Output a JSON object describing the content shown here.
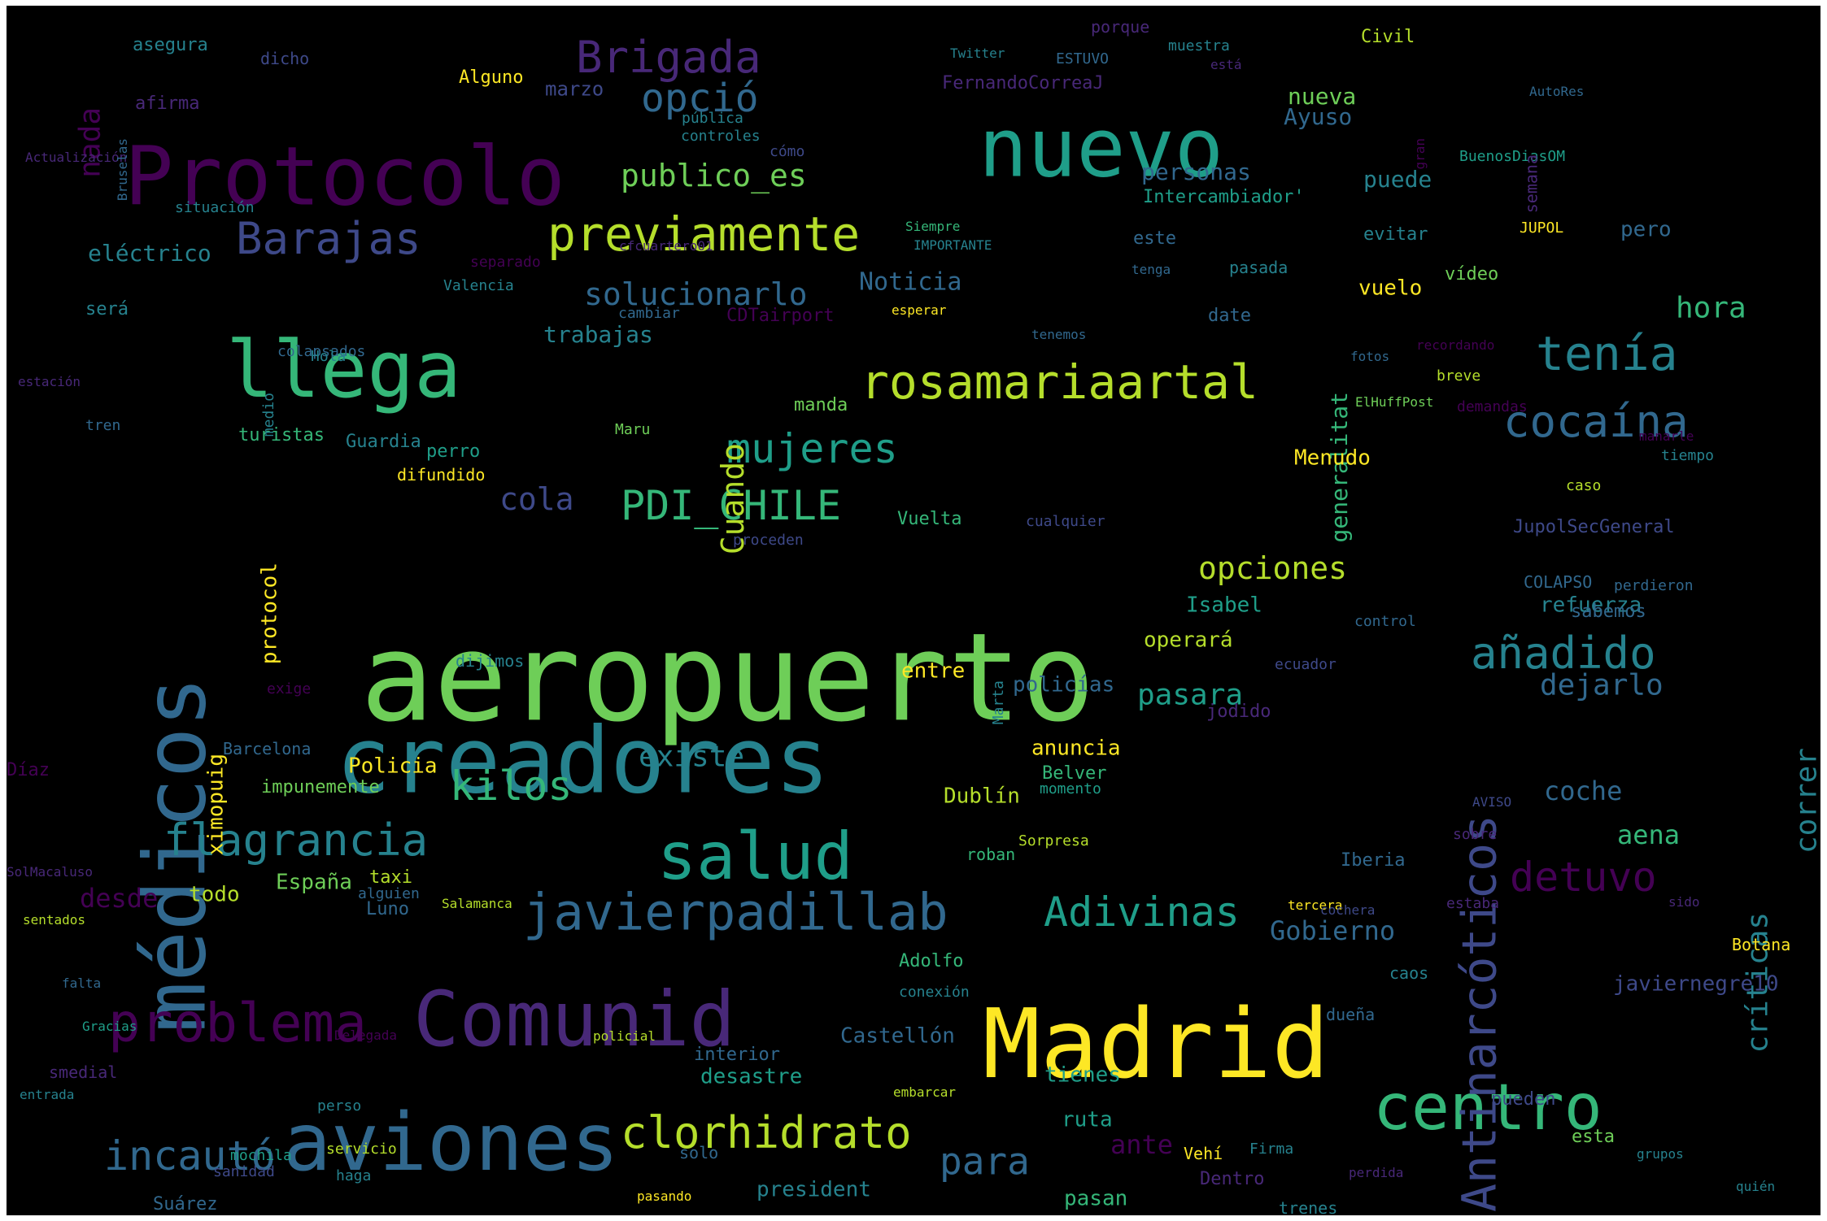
{
  "palette": [
    "#440154",
    "#482878",
    "#3e4989",
    "#31688e",
    "#26828e",
    "#1f9e89",
    "#35b779",
    "#6ece58",
    "#b5de2b",
    "#fde725"
  ],
  "words": [
    {
      "text": "aeropuerto",
      "c": 7
    },
    {
      "text": "Madrid",
      "c": 9
    },
    {
      "text": "creadores",
      "c": 4
    },
    {
      "text": "médicos",
      "c": 3
    },
    {
      "text": "nuevo",
      "c": 5
    },
    {
      "text": "Protocolo",
      "c": 0
    },
    {
      "text": "aviones",
      "c": 3
    },
    {
      "text": "llega",
      "c": 6
    },
    {
      "text": "Comunid",
      "c": 1
    },
    {
      "text": "salud",
      "c": 5
    },
    {
      "text": "centro",
      "c": 6
    },
    {
      "text": "problema",
      "c": 0
    },
    {
      "text": "javierpadillab",
      "c": 3
    },
    {
      "text": "Antinarcóticos",
      "c": 2
    },
    {
      "text": "rosamariaartal",
      "c": 8
    },
    {
      "text": "previamente",
      "c": 8
    },
    {
      "text": "Brigada",
      "c": 1
    },
    {
      "text": "Barajas",
      "c": 2
    },
    {
      "text": "tenía",
      "c": 4
    },
    {
      "text": "cocaína",
      "c": 3
    },
    {
      "text": "añadido",
      "c": 4
    },
    {
      "text": "flagrancia",
      "c": 4
    },
    {
      "text": "clorhidrato",
      "c": 8
    },
    {
      "text": "incautó",
      "c": 3
    },
    {
      "text": "Adivinas",
      "c": 5
    },
    {
      "text": "kilos",
      "c": 6
    },
    {
      "text": "mujeres",
      "c": 5
    },
    {
      "text": "PDI_CHILE",
      "c": 6
    },
    {
      "text": "opció",
      "c": 3
    },
    {
      "text": "detuvo",
      "c": 0
    },
    {
      "text": "para",
      "c": 3
    },
    {
      "text": "publico_es",
      "c": 7
    },
    {
      "text": "solucionarlo",
      "c": 3
    },
    {
      "text": "Cuando",
      "c": 8
    },
    {
      "text": "opciones",
      "c": 8
    },
    {
      "text": "cola",
      "c": 2
    },
    {
      "text": "críticas",
      "c": 4
    },
    {
      "text": "correr",
      "c": 4
    },
    {
      "text": "dejarlo",
      "c": 3
    },
    {
      "text": "existe",
      "c": 4
    },
    {
      "text": "pasara",
      "c": 5
    },
    {
      "text": "Gobierno",
      "c": 3
    },
    {
      "text": "nada",
      "c": 0
    },
    {
      "text": "desde",
      "c": 0
    },
    {
      "text": "coche",
      "c": 3
    },
    {
      "text": "hora",
      "c": 6
    },
    {
      "text": "aena",
      "c": 6
    },
    {
      "text": "ante",
      "c": 0
    },
    {
      "text": "Noticia",
      "c": 3
    },
    {
      "text": "trabajas",
      "c": 4
    },
    {
      "text": "generalitat",
      "c": 6
    },
    {
      "text": "Ayuso",
      "c": 3
    },
    {
      "text": "personas",
      "c": 3
    },
    {
      "text": "nueva",
      "c": 7
    },
    {
      "text": "marzo",
      "c": 2
    },
    {
      "text": "eléctrico",
      "c": 4
    },
    {
      "text": "desastre",
      "c": 5
    },
    {
      "text": "tienes",
      "c": 5
    },
    {
      "text": "president",
      "c": 4
    },
    {
      "text": "Castellón",
      "c": 3
    },
    {
      "text": "javiernegre10",
      "c": 2
    },
    {
      "text": "policías",
      "c": 3
    },
    {
      "text": "anuncia",
      "c": 9
    },
    {
      "text": "pasan",
      "c": 6
    },
    {
      "text": "ruta",
      "c": 5
    },
    {
      "text": "Menudo",
      "c": 9
    },
    {
      "text": "vuelo",
      "c": 9
    },
    {
      "text": "Isabel",
      "c": 5
    },
    {
      "text": "refuerza",
      "c": 4
    },
    {
      "text": "operará",
      "c": 8
    },
    {
      "text": "entre",
      "c": 9
    },
    {
      "text": "Policia",
      "c": 9
    },
    {
      "text": "Dublín",
      "c": 8
    },
    {
      "text": "España",
      "c": 7
    },
    {
      "text": "todo",
      "c": 8
    },
    {
      "text": "protocol",
      "c": 9
    },
    {
      "text": "ximopuig",
      "c": 9
    },
    {
      "text": "turistas",
      "c": 6
    },
    {
      "text": "Guardia",
      "c": 4
    },
    {
      "text": "perro",
      "c": 5
    },
    {
      "text": "manda",
      "c": 7
    },
    {
      "text": "Vuelta",
      "c": 6
    },
    {
      "text": "date",
      "c": 3
    },
    {
      "text": "pero",
      "c": 3
    },
    {
      "text": "puede",
      "c": 4
    },
    {
      "text": "Intercambiador'",
      "c": 5
    },
    {
      "text": "vídeo",
      "c": 7
    },
    {
      "text": "evitar",
      "c": 4
    },
    {
      "text": "este",
      "c": 3
    },
    {
      "text": "pasada",
      "c": 4
    },
    {
      "text": "Civil",
      "c": 8
    },
    {
      "text": "Alguno",
      "c": 9
    },
    {
      "text": "asegura",
      "c": 4
    },
    {
      "text": "afirma",
      "c": 1
    },
    {
      "text": "será",
      "c": 4
    },
    {
      "text": "Valencia",
      "c": 4
    },
    {
      "text": "separado",
      "c": 0
    },
    {
      "text": "situación",
      "c": 4
    },
    {
      "text": "dicho",
      "c": 2
    },
    {
      "text": "porque",
      "c": 1
    },
    {
      "text": "muestra",
      "c": 4
    },
    {
      "text": "ESTUVO",
      "c": 3
    },
    {
      "text": "Twitter",
      "c": 4
    },
    {
      "text": "está",
      "c": 1
    },
    {
      "text": "FernandoCorreaJ",
      "c": 1
    },
    {
      "text": "pública",
      "c": 4
    },
    {
      "text": "controles",
      "c": 4
    },
    {
      "text": "cómo",
      "c": 2
    },
    {
      "text": "Siempre",
      "c": 6
    },
    {
      "text": "IMPORTANTE",
      "c": 4
    },
    {
      "text": "cfcuartero01",
      "c": 1
    },
    {
      "text": "tenga",
      "c": 3
    },
    {
      "text": "JUPOL",
      "c": 9
    },
    {
      "text": "BuenosDiasOM",
      "c": 5
    },
    {
      "text": "AutoRes",
      "c": 3
    },
    {
      "text": "semana",
      "c": 1
    },
    {
      "text": "gran",
      "c": 0
    },
    {
      "text": "CDTairport",
      "c": 0
    },
    {
      "text": "esperar",
      "c": 9
    },
    {
      "text": "tenemos",
      "c": 3
    },
    {
      "text": "cambiar",
      "c": 3
    },
    {
      "text": "colapsados",
      "c": 3
    },
    {
      "text": "Hola",
      "c": 4
    },
    {
      "text": "medio",
      "c": 4
    },
    {
      "text": "Actualización",
      "c": 1
    },
    {
      "text": "Bruselas",
      "c": 3
    },
    {
      "text": "estación",
      "c": 1
    },
    {
      "text": "tren",
      "c": 3
    },
    {
      "text": "recordando",
      "c": 0
    },
    {
      "text": "fotos",
      "c": 3
    },
    {
      "text": "breve",
      "c": 8
    },
    {
      "text": "demandas",
      "c": 0
    },
    {
      "text": "ElHuffPost",
      "c": 7
    },
    {
      "text": "manarle",
      "c": 0
    },
    {
      "text": "tiempo",
      "c": 4
    },
    {
      "text": "caso",
      "c": 8
    },
    {
      "text": "JupolSecGeneral",
      "c": 2
    },
    {
      "text": "perdieron",
      "c": 3
    },
    {
      "text": "COLAPSO",
      "c": 3
    },
    {
      "text": "sabemos",
      "c": 3
    },
    {
      "text": "control",
      "c": 3
    },
    {
      "text": "ecuador",
      "c": 2
    },
    {
      "text": "jodido",
      "c": 1
    },
    {
      "text": "cualquier",
      "c": 2
    },
    {
      "text": "proceden",
      "c": 2
    },
    {
      "text": "Maru",
      "c": 7
    },
    {
      "text": "difundido",
      "c": 9
    },
    {
      "text": "dijimos",
      "c": 4
    },
    {
      "text": "exige",
      "c": 0
    },
    {
      "text": "Barcelona",
      "c": 3
    },
    {
      "text": "Díaz",
      "c": 0
    },
    {
      "text": "impunemente",
      "c": 7
    },
    {
      "text": "Marta",
      "c": 4
    },
    {
      "text": "Belver",
      "c": 6
    },
    {
      "text": "momento",
      "c": 5
    },
    {
      "text": "AVISO",
      "c": 2
    },
    {
      "text": "sobre",
      "c": 1
    },
    {
      "text": "Sorpresa",
      "c": 8
    },
    {
      "text": "roban",
      "c": 6
    },
    {
      "text": "Iberia",
      "c": 3
    },
    {
      "text": "SolMacaluso",
      "c": 1
    },
    {
      "text": "taxi",
      "c": 8
    },
    {
      "text": "alguien",
      "c": 3
    },
    {
      "text": "Salamanca",
      "c": 8
    },
    {
      "text": "Luno",
      "c": 3
    },
    {
      "text": "sentados",
      "c": 8
    },
    {
      "text": "tercera",
      "c": 9
    },
    {
      "text": "cochera",
      "c": 2
    },
    {
      "text": "estaba",
      "c": 1
    },
    {
      "text": "sido",
      "c": 1
    },
    {
      "text": "Botana",
      "c": 9
    },
    {
      "text": "Adolfo",
      "c": 6
    },
    {
      "text": "conexión",
      "c": 4
    },
    {
      "text": "caos",
      "c": 4
    },
    {
      "text": "dueña",
      "c": 3
    },
    {
      "text": "falta",
      "c": 3
    },
    {
      "text": "Gracias",
      "c": 5
    },
    {
      "text": "Delegada",
      "c": 0
    },
    {
      "text": "policial",
      "c": 8
    },
    {
      "text": "interior",
      "c": 3
    },
    {
      "text": "smedial",
      "c": 1
    },
    {
      "text": "embarcar",
      "c": 8
    },
    {
      "text": "entrada",
      "c": 4
    },
    {
      "text": "perso",
      "c": 4
    },
    {
      "text": "servicio",
      "c": 8
    },
    {
      "text": "mochila",
      "c": 5
    },
    {
      "text": "sanidad",
      "c": 2
    },
    {
      "text": "haga",
      "c": 4
    },
    {
      "text": "solo",
      "c": 3
    },
    {
      "text": "Vehí",
      "c": 9
    },
    {
      "text": "Firma",
      "c": 4
    },
    {
      "text": "Dentro",
      "c": 1
    },
    {
      "text": "pueden",
      "c": 2
    },
    {
      "text": "esta",
      "c": 7
    },
    {
      "text": "grupos",
      "c": 4
    },
    {
      "text": "perdida",
      "c": 1
    },
    {
      "text": "quién",
      "c": 4
    },
    {
      "text": "Suárez",
      "c": 3
    },
    {
      "text": "pasando",
      "c": 9
    },
    {
      "text": "trenes",
      "c": 4
    }
  ]
}
